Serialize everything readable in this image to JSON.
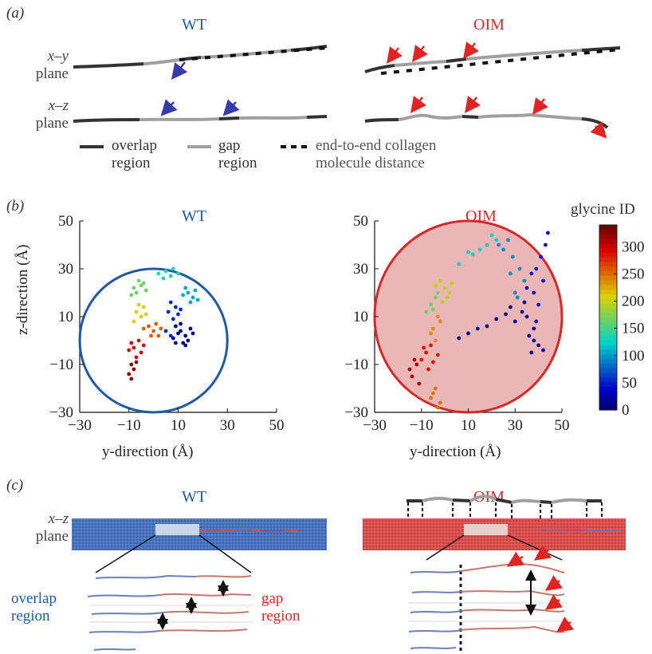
{
  "panel_a": {
    "label": "(a)",
    "wt_title": "WT",
    "oim_title": "OIM",
    "xy_plane_line1": "x–y",
    "xy_plane_line2": "plane",
    "xz_plane_line1": "x–z",
    "xz_plane_line2": "plane",
    "legend": {
      "overlap_line1": "overlap",
      "overlap_line2": "region",
      "gap_line1": "gap",
      "gap_line2": "region",
      "dist_line1": "end-to-end collagen",
      "dist_line2": "molecule distance"
    },
    "colors": {
      "overlap": "#333333",
      "gap": "#a0a0a0",
      "wt_arrow": "#3a3aa8",
      "oim_arrow": "#e02424"
    }
  },
  "panel_b": {
    "label": "(b)",
    "wt_title": "WT",
    "oim_title": "OIM",
    "colorbar_title": "glycine ID",
    "colors": {
      "wt_circle": "#1f5aa3",
      "oim_circle": "#d42a2a",
      "oim_fill": "#ebb6b6"
    }
  },
  "chart_data": [
    {
      "type": "scatter",
      "title": "WT",
      "xlabel": "y-direction (Å)",
      "ylabel": "z-direction (Å)",
      "xlim": [
        -30,
        50
      ],
      "ylim": [
        -30,
        50
      ],
      "x_ticks": [
        "−30",
        "−10",
        "10",
        "30",
        "50"
      ],
      "y_ticks": [
        "50",
        "30",
        "10",
        "−10",
        "−30"
      ],
      "circle": {
        "center": [
          0,
          0
        ],
        "radius": 30
      },
      "series": [
        {
          "color_id": 20,
          "points": [
            [
              13,
              2
            ],
            [
              11,
              4
            ],
            [
              14,
              0
            ],
            [
              9,
              6
            ],
            [
              12,
              -1
            ],
            [
              10,
              3
            ],
            [
              15,
              5
            ],
            [
              8,
              1
            ],
            [
              13,
              -2
            ],
            [
              11,
              7
            ],
            [
              16,
              3
            ],
            [
              9,
              -1
            ]
          ]
        },
        {
          "color_id": 60,
          "points": [
            [
              7,
              2
            ],
            [
              5,
              4
            ],
            [
              8,
              9
            ],
            [
              6,
              12
            ],
            [
              9,
              14
            ],
            [
              7,
              16
            ],
            [
              10,
              11
            ],
            [
              11,
              13
            ]
          ]
        },
        {
          "color_id": 110,
          "points": [
            [
              14,
              20
            ],
            [
              16,
              18
            ],
            [
              13,
              22
            ],
            [
              17,
              21
            ],
            [
              15,
              16
            ],
            [
              12,
              19
            ],
            [
              18,
              17
            ]
          ]
        },
        {
          "color_id": 140,
          "points": [
            [
              2,
              28
            ],
            [
              5,
              29
            ],
            [
              8,
              30
            ],
            [
              4,
              26
            ],
            [
              7,
              27
            ],
            [
              10,
              28
            ]
          ]
        },
        {
          "color_id": 170,
          "points": [
            [
              -8,
              22
            ],
            [
              -6,
              25
            ],
            [
              -4,
              24
            ],
            [
              -9,
              19
            ],
            [
              -7,
              20
            ],
            [
              -5,
              23
            ],
            [
              -3,
              21
            ]
          ]
        },
        {
          "color_id": 210,
          "points": [
            [
              -7,
              12
            ],
            [
              -5,
              10
            ],
            [
              -8,
              8
            ],
            [
              -4,
              14
            ],
            [
              -6,
              15
            ],
            [
              -3,
              11
            ]
          ]
        },
        {
          "color_id": 260,
          "points": [
            [
              -2,
              6
            ],
            [
              0,
              4
            ],
            [
              2,
              2
            ],
            [
              -4,
              5
            ],
            [
              1,
              7
            ],
            [
              3,
              5
            ],
            [
              -1,
              2
            ]
          ]
        },
        {
          "color_id": 300,
          "points": [
            [
              -6,
              0
            ],
            [
              -8,
              -3
            ],
            [
              -5,
              -5
            ],
            [
              -9,
              -1
            ],
            [
              -7,
              -7
            ],
            [
              -4,
              -2
            ],
            [
              -10,
              -4
            ]
          ]
        },
        {
          "color_id": 330,
          "points": [
            [
              -9,
              -10
            ],
            [
              -8,
              -12
            ],
            [
              -10,
              -14
            ],
            [
              -7,
              -9
            ],
            [
              -9,
              -16
            ]
          ]
        }
      ]
    },
    {
      "type": "scatter",
      "title": "OIM",
      "xlabel": "y-direction (Å)",
      "ylabel": "",
      "xlim": [
        -30,
        50
      ],
      "ylim": [
        -30,
        50
      ],
      "x_ticks": [
        "−30",
        "−10",
        "10",
        "30",
        "50"
      ],
      "y_ticks": [
        "50",
        "30",
        "10",
        "−10",
        "−30"
      ],
      "circle": {
        "center": [
          10,
          10
        ],
        "radius": 40
      },
      "series": [
        {
          "color_id": 20,
          "points": [
            [
              38,
              5
            ],
            [
              36,
              2
            ],
            [
              40,
              -2
            ],
            [
              37,
              -5
            ],
            [
              39,
              8
            ],
            [
              35,
              10
            ],
            [
              42,
              -4
            ],
            [
              38,
              0
            ],
            [
              33,
              12
            ],
            [
              30,
              8
            ],
            [
              28,
              14
            ],
            [
              34,
              16
            ],
            [
              26,
              11
            ],
            [
              22,
              9
            ],
            [
              18,
              6
            ],
            [
              14,
              5
            ],
            [
              10,
              3
            ],
            [
              6,
              1
            ]
          ]
        },
        {
          "color_id": 50,
          "points": [
            [
              40,
              15
            ],
            [
              38,
              20
            ],
            [
              42,
              25
            ],
            [
              39,
              30
            ],
            [
              41,
              35
            ],
            [
              43,
              40
            ],
            [
              44,
              45
            ],
            [
              37,
              28
            ],
            [
              35,
              22
            ]
          ]
        },
        {
          "color_id": 100,
          "points": [
            [
              25,
              38
            ],
            [
              27,
              42
            ],
            [
              23,
              40
            ],
            [
              29,
              35
            ],
            [
              32,
              30
            ],
            [
              34,
              25
            ],
            [
              30,
              20
            ],
            [
              28,
              28
            ],
            [
              31,
              18
            ]
          ]
        },
        {
          "color_id": 130,
          "points": [
            [
              15,
              38
            ],
            [
              18,
              40
            ],
            [
              12,
              36
            ],
            [
              20,
              44
            ],
            [
              22,
              42
            ],
            [
              10,
              37
            ],
            [
              6,
              32
            ]
          ]
        },
        {
          "color_id": 170,
          "points": [
            [
              -6,
              15
            ],
            [
              -4,
              18
            ],
            [
              -8,
              12
            ],
            [
              -3,
              20
            ],
            [
              -5,
              13
            ]
          ]
        },
        {
          "color_id": 200,
          "points": [
            [
              -2,
              25
            ],
            [
              0,
              22
            ],
            [
              2,
              20
            ],
            [
              -4,
              23
            ],
            [
              1,
              18
            ],
            [
              3,
              24
            ],
            [
              -1,
              16
            ]
          ]
        },
        {
          "color_id": 240,
          "points": [
            [
              -3,
              10
            ],
            [
              -5,
              5
            ],
            [
              -2,
              8
            ],
            [
              -6,
              3
            ],
            [
              -4,
              0
            ]
          ]
        },
        {
          "color_id": 290,
          "points": [
            [
              -8,
              -5
            ],
            [
              -6,
              -2
            ],
            [
              -10,
              -8
            ],
            [
              -7,
              -12
            ],
            [
              -9,
              -3
            ],
            [
              -5,
              -9
            ],
            [
              -3,
              -6
            ]
          ]
        },
        {
          "color_id": 320,
          "points": [
            [
              -12,
              -10
            ],
            [
              -14,
              -15
            ],
            [
              -11,
              -18
            ],
            [
              -13,
              -8
            ],
            [
              -15,
              -12
            ]
          ]
        },
        {
          "color_id": 250,
          "points": [
            [
              -4,
              -20
            ],
            [
              -6,
              -24
            ],
            [
              -2,
              -26
            ],
            [
              -5,
              -22
            ],
            [
              -3,
              -28
            ]
          ]
        }
      ]
    }
  ],
  "colorbar": {
    "ticks": [
      "300",
      "250",
      "200",
      "150",
      "100",
      "50",
      "0"
    ],
    "min": 0,
    "max": 340
  },
  "panel_c": {
    "label": "(c)",
    "wt_title": "WT",
    "oim_title": "OIM",
    "plane_line1": "x–z",
    "plane_line2": "plane",
    "overlap_line1": "overlap",
    "overlap_line2": "region",
    "gap_line1": "gap",
    "gap_line2": "region",
    "colors": {
      "wt_fibril": "#3f6fbf",
      "oim_fibril": "#d84545"
    }
  }
}
